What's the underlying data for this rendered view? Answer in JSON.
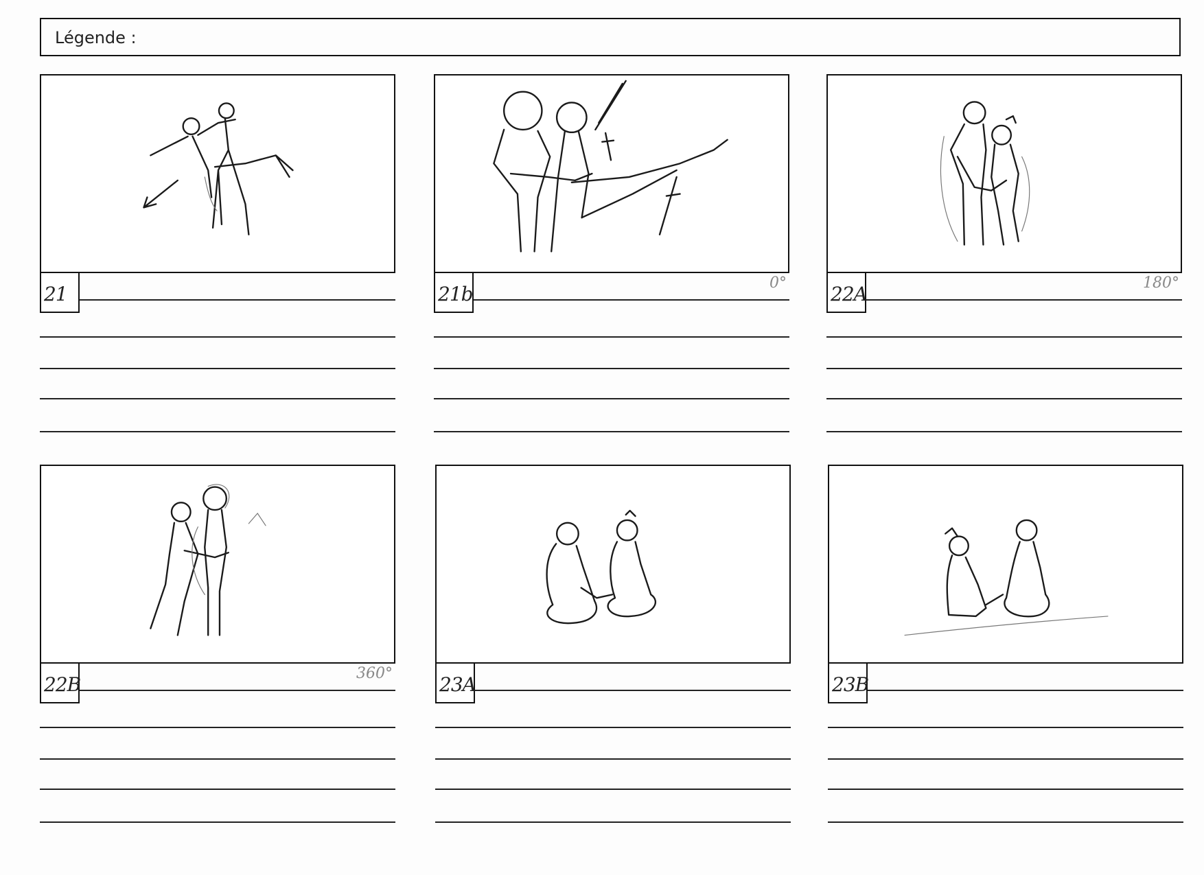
{
  "legend": {
    "label": "Légende :"
  },
  "panels": [
    {
      "number": "21",
      "angle": ""
    },
    {
      "number": "21b",
      "angle": "0°"
    },
    {
      "number": "22A",
      "angle": "180°"
    },
    {
      "number": "22B",
      "angle": "360°"
    },
    {
      "number": "23A",
      "angle": ""
    },
    {
      "number": "23B",
      "angle": ""
    }
  ]
}
